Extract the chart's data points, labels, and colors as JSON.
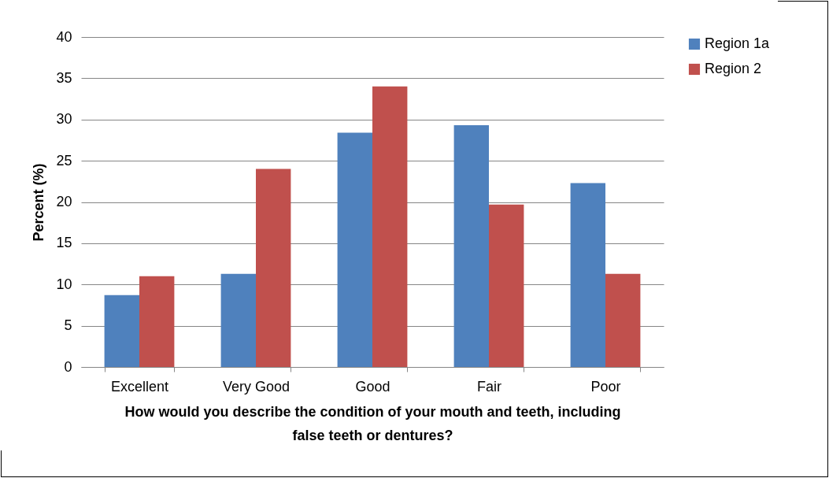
{
  "chart_data": {
    "type": "bar",
    "xlabel": "How would you describe the condition of your mouth and teeth, including false teeth or dentures?",
    "ylabel": "Percent (%)",
    "categories": [
      "Excellent",
      "Very Good",
      "Good",
      "Fair",
      "Poor"
    ],
    "series": [
      {
        "name": "Region 1a",
        "color": "#4f81bd",
        "values": [
          8.7,
          11.3,
          28.4,
          29.3,
          22.3
        ]
      },
      {
        "name": "Region 2",
        "color": "#c0504d",
        "values": [
          11,
          24,
          34,
          19.7,
          11.3
        ]
      }
    ],
    "ylim": [
      0,
      40
    ],
    "yticks": [
      0,
      5,
      10,
      15,
      20,
      25,
      30,
      35,
      40
    ],
    "grid": "y",
    "legend": "right"
  }
}
